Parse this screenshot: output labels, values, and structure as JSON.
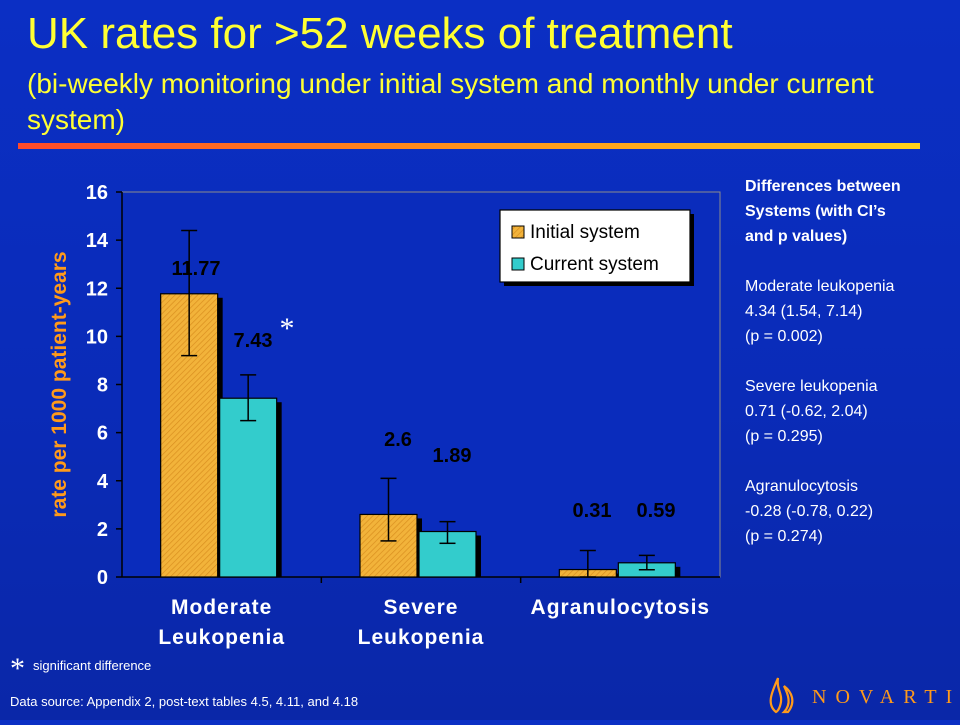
{
  "header": {
    "title": "UK rates for >52 weeks of treatment",
    "subtitle": "(bi-weekly monitoring under initial system and monthly under current system)"
  },
  "chart_data": {
    "type": "bar",
    "ylabel": "rate per 1000 patient-years",
    "ylim": [
      0,
      16
    ],
    "yticks": [
      "0",
      "2",
      "4",
      "6",
      "8",
      "10",
      "12",
      "14",
      "16"
    ],
    "categories": [
      [
        "Moderate",
        "Leukopenia"
      ],
      [
        "Severe",
        "Leukopenia"
      ],
      [
        "Agranulocytosis"
      ]
    ],
    "series": [
      {
        "name": "Initial system",
        "color": "#f2b33a",
        "values": [
          11.77,
          2.6,
          0.31
        ],
        "labels": [
          "11.77",
          "2.6",
          "0.31"
        ],
        "ci": [
          [
            9.2,
            14.4
          ],
          [
            1.5,
            4.1
          ],
          [
            0.0,
            1.1
          ]
        ]
      },
      {
        "name": "Current system",
        "color": "#33cccc",
        "values": [
          7.43,
          1.89,
          0.59
        ],
        "labels": [
          "7.43",
          "1.89",
          "0.59"
        ],
        "ci": [
          [
            6.5,
            8.4
          ],
          [
            1.4,
            2.3
          ],
          [
            0.3,
            0.9
          ]
        ]
      }
    ],
    "annotations": [
      {
        "text": "*",
        "category": 0
      }
    ],
    "legend_position": "top-right",
    "grid": false
  },
  "notes": {
    "heading": [
      "Differences between",
      "Systems (with CI’s",
      "and p values)"
    ],
    "items": [
      {
        "lines": [
          "Moderate leukopenia",
          "4.34 (1.54, 7.14)",
          "(p = 0.002)"
        ]
      },
      {
        "lines": [
          "Severe leukopenia",
          "0.71 (-0.62, 2.04)",
          "(p = 0.295)"
        ]
      },
      {
        "lines": [
          "Agranulocytosis",
          "-0.28 (-0.78, 0.22)",
          "(p = 0.274)"
        ]
      }
    ]
  },
  "footer": {
    "sig_star": "*",
    "sig_text": "significant difference",
    "source": "Data source: Appendix 2, post-text tables 4.5, 4.11, and 4.18",
    "logo_text": "NOVARTIS"
  },
  "colors": {
    "title": "#ffff33",
    "background": "#0b2fc4",
    "axis_text": "#ffffff",
    "ylabel": "#ff9a1a"
  }
}
